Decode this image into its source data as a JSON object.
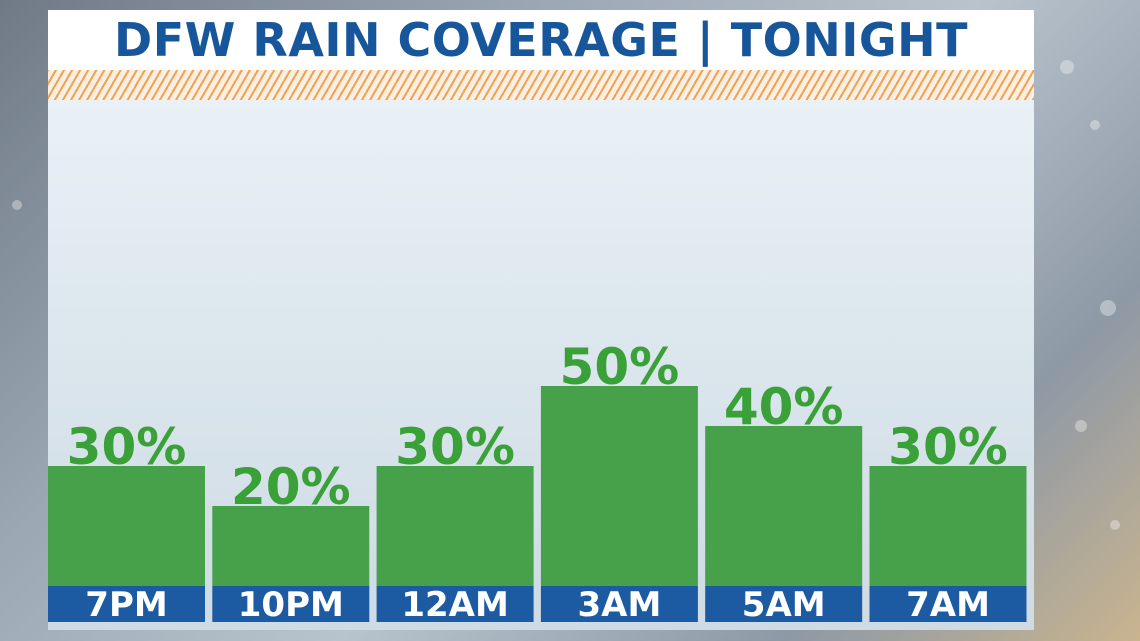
{
  "colors": {
    "title": "#17569a",
    "bar": "#47a04a",
    "label_band": "#1c5aa2",
    "data_label": "#3aa038",
    "stripe": "#f0a24e"
  },
  "chart_data": {
    "type": "bar",
    "title": "DFW RAIN COVERAGE | TONIGHT",
    "categories": [
      "7PM",
      "10PM",
      "12AM",
      "3AM",
      "5AM",
      "7AM"
    ],
    "values": [
      30,
      20,
      30,
      50,
      40,
      30
    ],
    "data_labels": [
      "30%",
      "20%",
      "30%",
      "50%",
      "40%",
      "30%"
    ],
    "unit": "%",
    "ylim": [
      0,
      100
    ],
    "grid": false,
    "legend": "none"
  }
}
